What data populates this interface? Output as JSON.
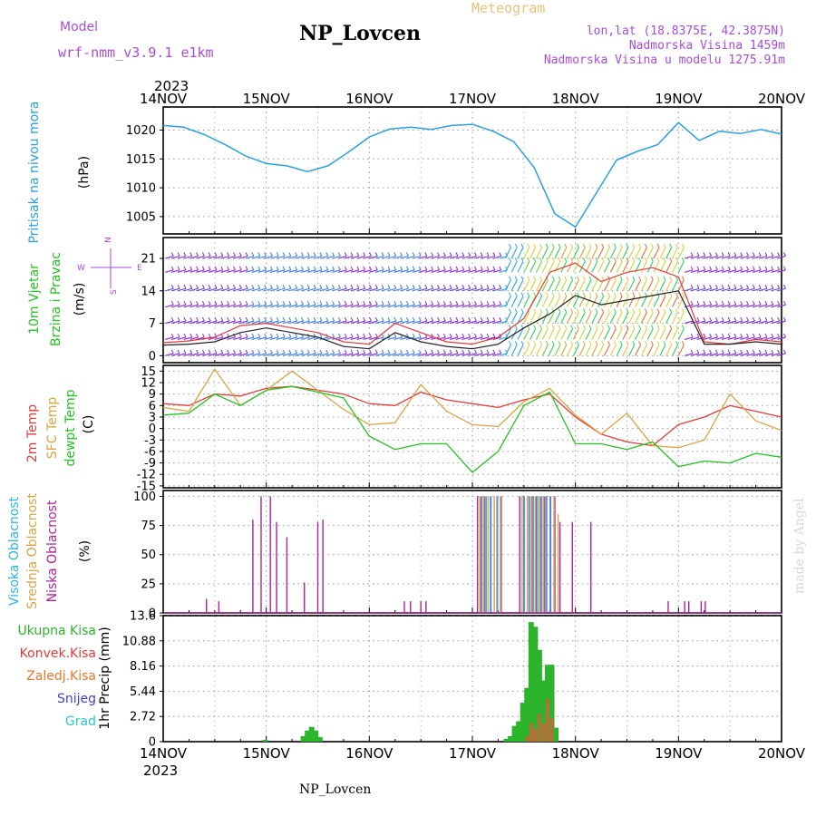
{
  "header": {
    "model_label": "Model",
    "model_name": "wrf-nmm_v3.9.1 e1km",
    "title": "NP_Lovcen",
    "meteogram": "Meteogram",
    "lonlat": "lon,lat (18.8375E, 42.3875N)",
    "elev": "Nadmorska Visina 1459m",
    "elev_model": "Nadmorska Visina u modelu 1275.91m",
    "year_top": "2023",
    "year_bottom": "2023",
    "footer": "NP_Lovcen",
    "credit": "made by Angel"
  },
  "colors": {
    "pressure": "#26a0e6",
    "temp2m": "#e83a3a",
    "sfc": "#d9a441",
    "dewpt": "#22c41f",
    "high_cloud": "#29b6e6",
    "mid_cloud": "#d9a441",
    "low_cloud": "#b0219b",
    "purple_text": "#a64dd9",
    "orange_text": "#e8c27a"
  },
  "chart_data": [
    {
      "type": "line",
      "panel": "pressure",
      "ylabel_lines": [
        "Pritisak na nivou mora",
        "(hPa)"
      ],
      "ylim": [
        1002,
        1024
      ],
      "yticks": [
        1005,
        1010,
        1015,
        1020
      ],
      "x_dates": [
        "14NOV",
        "15NOV",
        "16NOV",
        "17NOV",
        "18NOV",
        "19NOV",
        "20NOV"
      ],
      "x_day": [
        0,
        0.2,
        0.4,
        0.6,
        0.8,
        1.0,
        1.2,
        1.4,
        1.6,
        1.8,
        2.0,
        2.2,
        2.4,
        2.6,
        2.8,
        3.0,
        3.2,
        3.4,
        3.6,
        3.8,
        4.0,
        4.2,
        4.4,
        4.6,
        4.8,
        5.0,
        5.2,
        5.4,
        5.6,
        5.8,
        6.0
      ],
      "series": [
        {
          "values": [
            1020.8,
            1020.5,
            1019.2,
            1017.5,
            1015.5,
            1014.2,
            1013.8,
            1012.8,
            1013.8,
            1016.2,
            1018.8,
            1020.2,
            1020.5,
            1020.1,
            1020.8,
            1021.0,
            1019.8,
            1018.0,
            1013.5,
            1005.5,
            1003.2,
            1009.0,
            1014.8,
            1016.3,
            1017.5,
            1021.3,
            1018.2,
            1019.8,
            1019.4,
            1020.1,
            1019.3
          ]
        }
      ]
    },
    {
      "type": "line",
      "panel": "wind",
      "ylabel_lines": [
        "10m Vjetar",
        "Brzina i Pravac",
        "(m/s)"
      ],
      "compass": [
        "N",
        "W",
        "E",
        "S"
      ],
      "ylim": [
        -1.5,
        25.5
      ],
      "yticks": [
        0,
        7,
        14,
        21
      ],
      "x_day": [
        0,
        0.25,
        0.5,
        0.75,
        1.0,
        1.25,
        1.5,
        1.75,
        2.0,
        2.25,
        2.5,
        2.75,
        3.0,
        3.25,
        3.5,
        3.75,
        4.0,
        4.25,
        4.5,
        4.75,
        5.0,
        5.25,
        5.5,
        5.75,
        6.0
      ],
      "series": [
        {
          "name": "speed",
          "values": [
            2.3,
            2.5,
            3.0,
            5.0,
            6.0,
            5.0,
            4.0,
            2.0,
            1.5,
            5.0,
            3.0,
            2.0,
            1.5,
            2.5,
            6.0,
            9.0,
            13.0,
            11.0,
            12.0,
            13.0,
            14.0,
            2.5,
            2.5,
            3.0,
            2.5
          ]
        },
        {
          "name": "gust",
          "values": [
            2.8,
            3.2,
            4.0,
            6.5,
            7.0,
            6.0,
            5.0,
            3.0,
            2.5,
            7.0,
            5.0,
            3.0,
            2.5,
            4.0,
            8.0,
            18.0,
            20.0,
            16.0,
            18.0,
            19.0,
            17.0,
            3.0,
            2.5,
            3.5,
            3.0
          ]
        }
      ],
      "barb_rows": [
        21,
        18,
        14,
        10.5,
        7,
        3.5,
        0
      ]
    },
    {
      "type": "line",
      "panel": "temperature",
      "ylabel_lines": [
        "2m Temp",
        "SFC Temp",
        "dewpt Temp",
        "(C)"
      ],
      "ylim": [
        -15.5,
        16.5
      ],
      "yticks": [
        15,
        12,
        9,
        6,
        3,
        0,
        -3,
        -6,
        -9,
        -12,
        -15
      ],
      "x_day": [
        0,
        0.25,
        0.5,
        0.75,
        1.0,
        1.25,
        1.5,
        1.75,
        2.0,
        2.25,
        2.5,
        2.75,
        3.0,
        3.25,
        3.5,
        3.75,
        4.0,
        4.25,
        4.5,
        4.75,
        5.0,
        5.25,
        5.5,
        5.75,
        6.0
      ],
      "series": [
        {
          "name": "2m Temp",
          "values": [
            6.5,
            6.0,
            9.0,
            8.5,
            10.5,
            11.0,
            10.0,
            9.0,
            6.5,
            6.0,
            9.5,
            7.5,
            6.5,
            5.5,
            7.5,
            9.0,
            3.0,
            -1.5,
            -3.5,
            -4.5,
            1.0,
            3.0,
            6.0,
            4.5,
            3.0
          ]
        },
        {
          "name": "SFC Temp",
          "values": [
            5.5,
            4.5,
            15.5,
            6.0,
            10.0,
            15.0,
            10.0,
            5.0,
            1.0,
            1.5,
            11.5,
            4.5,
            1.0,
            0.5,
            7.0,
            10.5,
            3.5,
            -1.5,
            4.0,
            -4.5,
            -5.0,
            -3.0,
            9.0,
            2.0,
            -0.5
          ]
        },
        {
          "name": "dewpt Temp",
          "values": [
            3.5,
            4.0,
            9.0,
            6.0,
            10.0,
            11.0,
            9.5,
            8.0,
            -2.0,
            -5.5,
            -4.0,
            -4.0,
            -11.5,
            -6.0,
            6.0,
            9.5,
            -4.0,
            -4.0,
            -5.5,
            -3.5,
            -10.0,
            -8.5,
            -9.0,
            -6.5,
            -7.5
          ]
        }
      ]
    },
    {
      "type": "bar",
      "panel": "clouds",
      "ylabel_lines": [
        "Visoka Oblacnost",
        "Srednja Oblacnost",
        "Niska Oblacnost",
        "(%)"
      ],
      "legend": [
        "Visoka Oblacnost",
        "Srednja Oblacnost",
        "Niska Oblacnost"
      ],
      "ylim": [
        0,
        105
      ],
      "yticks": [
        0,
        25,
        50,
        75,
        100
      ],
      "series": [
        {
          "name": "Niska Oblacnost",
          "x_day": [
            0.42,
            0.54,
            0.87,
            0.95,
            1.04,
            1.1,
            1.2,
            1.37,
            1.5,
            1.55,
            2.34,
            2.4,
            2.5,
            2.55,
            3.05,
            3.08,
            3.12,
            3.18,
            3.24,
            3.28,
            3.46,
            3.5,
            3.55,
            3.58,
            3.62,
            3.66,
            3.7,
            3.72,
            3.76,
            3.8,
            3.85,
            3.97,
            4.15,
            4.9,
            5.06,
            5.1,
            5.22,
            5.26
          ],
          "values": [
            12,
            10,
            80,
            100,
            100,
            78,
            65,
            26,
            78,
            80,
            10,
            10,
            10,
            10,
            100,
            100,
            100,
            100,
            100,
            100,
            100,
            100,
            100,
            100,
            100,
            100,
            100,
            100,
            100,
            100,
            78,
            78,
            78,
            10,
            10,
            10,
            10,
            10
          ]
        },
        {
          "name": "Srednja Oblacnost",
          "x_day": [
            3.06,
            3.1,
            3.14,
            3.2,
            3.26,
            3.47,
            3.52,
            3.56,
            3.6,
            3.64,
            3.68,
            3.74,
            3.78,
            3.82
          ],
          "values": [
            100,
            100,
            100,
            100,
            100,
            100,
            100,
            100,
            100,
            100,
            100,
            100,
            100,
            85
          ]
        },
        {
          "name": "Visoka Oblacnost",
          "x_day": [
            3.07,
            3.11,
            3.15,
            3.22,
            3.48,
            3.53,
            3.57,
            3.61,
            3.65,
            3.69,
            3.73
          ],
          "values": [
            100,
            100,
            100,
            100,
            100,
            100,
            100,
            100,
            100,
            100,
            100
          ]
        }
      ]
    },
    {
      "type": "bar",
      "panel": "precip",
      "ylabel_lines": [
        "1hr Precip (mm)"
      ],
      "legend": [
        "Ukupna Kisa",
        "Konvek.Kisa",
        "Zaledj.Kisa",
        "Snijeg",
        "Grad"
      ],
      "ylim": [
        0,
        13.6
      ],
      "yticks": [
        0,
        2.72,
        5.44,
        8.16,
        10.88,
        13.6
      ],
      "ytick_labels": [
        "0",
        "2.72",
        "5.44",
        "8.16",
        "10.88",
        "13.6"
      ],
      "series": [
        {
          "name": "Ukupna Kisa",
          "x_day": [
            0.99,
            1.36,
            1.4,
            1.44,
            1.48,
            1.52,
            3.33,
            3.37,
            3.41,
            3.45,
            3.49,
            3.53,
            3.57,
            3.61,
            3.65,
            3.69,
            3.73,
            3.77,
            3.81
          ],
          "values": [
            0.2,
            0.6,
            1.2,
            1.6,
            1.2,
            0.5,
            0.3,
            0.6,
            1.7,
            2.2,
            4.2,
            5.8,
            12.9,
            12.4,
            9.9,
            6.6,
            8.3,
            8.3,
            1.5
          ]
        },
        {
          "name": "Konvek.Kisa",
          "x_day": [
            3.53,
            3.57,
            3.61,
            3.65,
            3.69,
            3.73,
            3.77
          ],
          "values": [
            0.6,
            2.0,
            1.4,
            3.0,
            2.0,
            4.6,
            2.5
          ]
        }
      ]
    }
  ]
}
